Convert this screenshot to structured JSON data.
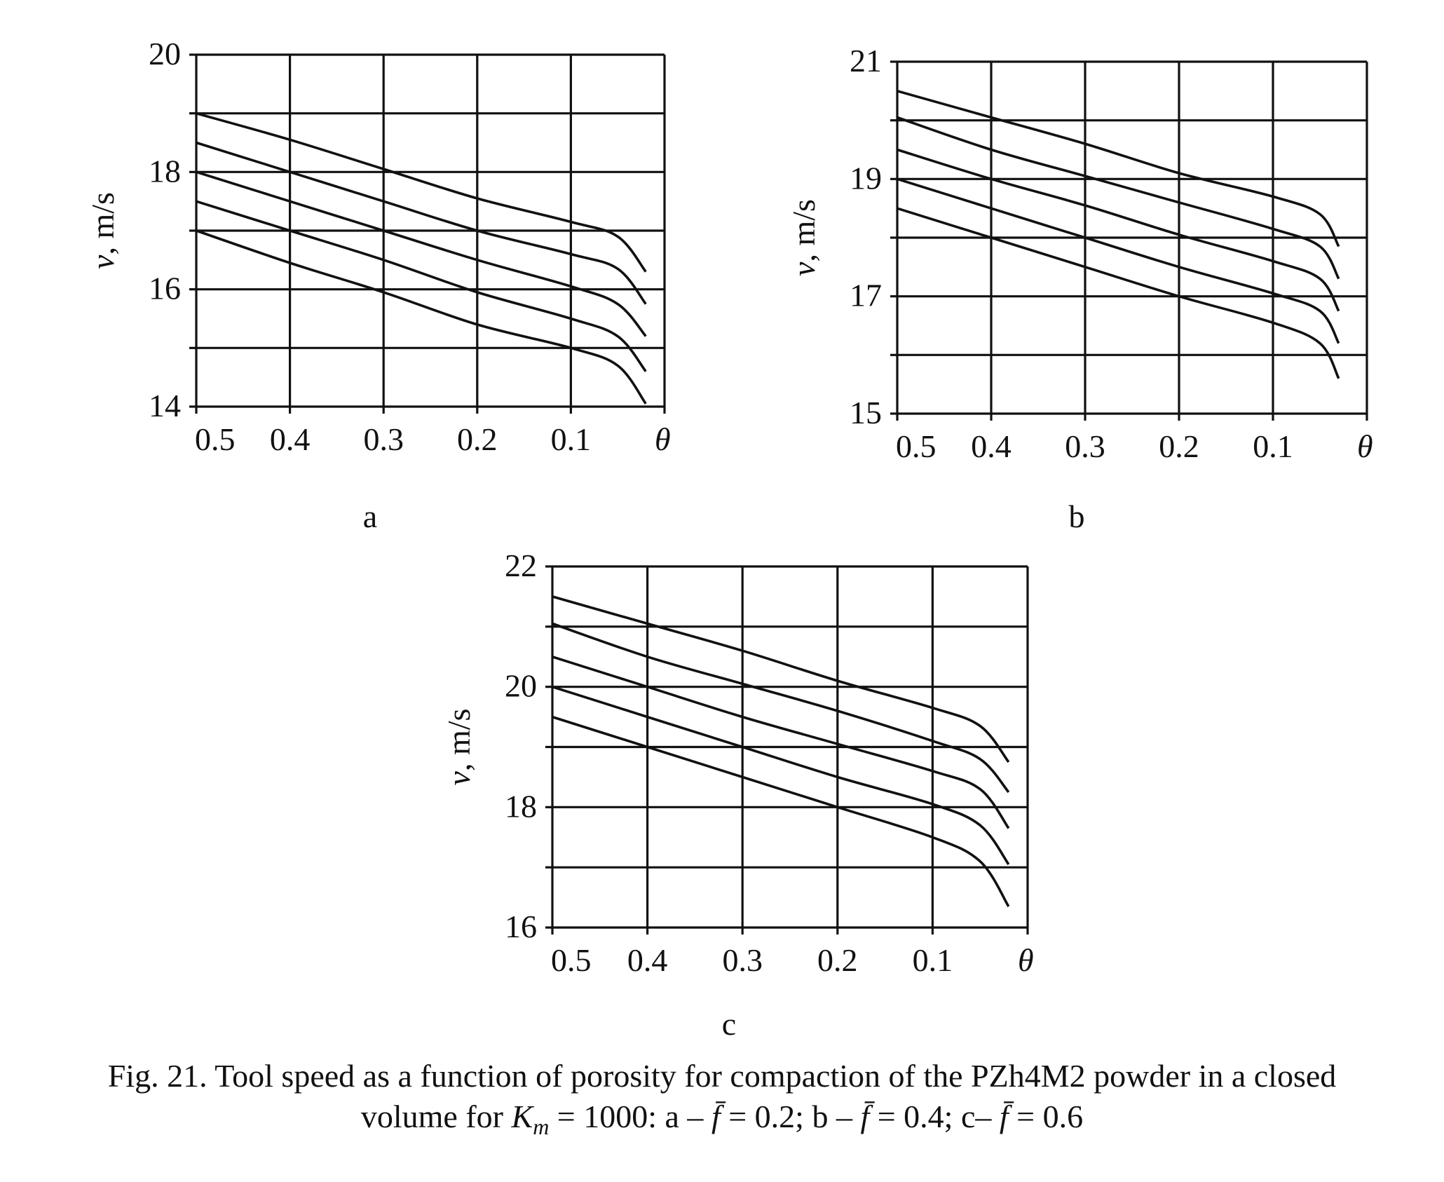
{
  "chart_data": [
    {
      "type": "line",
      "panel_label": "a",
      "ylabel_symbol": "v",
      "ylabel_unit": ", m/s",
      "xlabel": "θ",
      "x_ticks": [
        "0.5",
        "0.4",
        "0.3",
        "0.2",
        "0.1"
      ],
      "y_ticks": [
        "14",
        "16",
        "18",
        "20"
      ],
      "xlim": [
        0.5,
        0.0
      ],
      "ylim": [
        14,
        20
      ],
      "grid": true,
      "series": [
        {
          "x": [
            0.5,
            0.4,
            0.3,
            0.2,
            0.1,
            0.05,
            0.02
          ],
          "y": [
            19.0,
            18.55,
            18.05,
            17.55,
            17.15,
            16.9,
            16.3
          ]
        },
        {
          "x": [
            0.5,
            0.4,
            0.3,
            0.2,
            0.1,
            0.05,
            0.02
          ],
          "y": [
            18.5,
            18.0,
            17.5,
            17.0,
            16.6,
            16.35,
            15.75
          ]
        },
        {
          "x": [
            0.5,
            0.4,
            0.3,
            0.2,
            0.1,
            0.05,
            0.02
          ],
          "y": [
            18.0,
            17.5,
            17.0,
            16.5,
            16.05,
            15.75,
            15.2
          ]
        },
        {
          "x": [
            0.5,
            0.4,
            0.3,
            0.2,
            0.1,
            0.05,
            0.02
          ],
          "y": [
            17.5,
            17.0,
            16.5,
            15.95,
            15.5,
            15.2,
            14.6
          ]
        },
        {
          "x": [
            0.5,
            0.4,
            0.3,
            0.2,
            0.1,
            0.05,
            0.02
          ],
          "y": [
            17.0,
            16.45,
            15.95,
            15.4,
            15.0,
            14.7,
            14.05
          ]
        }
      ]
    },
    {
      "type": "line",
      "panel_label": "b",
      "ylabel_symbol": "v",
      "ylabel_unit": ", m/s",
      "xlabel": "θ",
      "x_ticks": [
        "0.5",
        "0.4",
        "0.3",
        "0.2",
        "0.1"
      ],
      "y_ticks": [
        "15",
        "17",
        "19",
        "21"
      ],
      "xlim": [
        0.5,
        0.0
      ],
      "ylim": [
        15,
        21
      ],
      "grid": true,
      "series": [
        {
          "x": [
            0.5,
            0.4,
            0.3,
            0.2,
            0.1,
            0.05,
            0.03
          ],
          "y": [
            20.5,
            20.05,
            19.6,
            19.1,
            18.7,
            18.4,
            17.85
          ]
        },
        {
          "x": [
            0.5,
            0.4,
            0.3,
            0.2,
            0.1,
            0.05,
            0.03
          ],
          "y": [
            20.05,
            19.5,
            19.05,
            18.6,
            18.15,
            17.85,
            17.3
          ]
        },
        {
          "x": [
            0.5,
            0.4,
            0.3,
            0.2,
            0.1,
            0.05,
            0.03
          ],
          "y": [
            19.5,
            19.0,
            18.55,
            18.05,
            17.6,
            17.3,
            16.75
          ]
        },
        {
          "x": [
            0.5,
            0.4,
            0.3,
            0.2,
            0.1,
            0.05,
            0.03
          ],
          "y": [
            19.0,
            18.5,
            18.0,
            17.5,
            17.05,
            16.75,
            16.2
          ]
        },
        {
          "x": [
            0.5,
            0.4,
            0.3,
            0.2,
            0.1,
            0.05,
            0.03
          ],
          "y": [
            18.5,
            18.0,
            17.5,
            17.0,
            16.55,
            16.2,
            15.6
          ]
        }
      ]
    },
    {
      "type": "line",
      "panel_label": "c",
      "ylabel_symbol": "v",
      "ylabel_unit": ", m/s",
      "xlabel": "θ",
      "x_ticks": [
        "0.5",
        "0.4",
        "0.3",
        "0.2",
        "0.1"
      ],
      "y_ticks": [
        "16",
        "18",
        "20",
        "22"
      ],
      "xlim": [
        0.5,
        0.0
      ],
      "ylim": [
        16,
        22
      ],
      "grid": true,
      "series": [
        {
          "x": [
            0.5,
            0.4,
            0.3,
            0.2,
            0.1,
            0.05,
            0.02
          ],
          "y": [
            21.5,
            21.05,
            20.6,
            20.1,
            19.65,
            19.35,
            18.75
          ]
        },
        {
          "x": [
            0.5,
            0.4,
            0.3,
            0.2,
            0.1,
            0.05,
            0.02
          ],
          "y": [
            21.05,
            20.5,
            20.05,
            19.6,
            19.1,
            18.8,
            18.25
          ]
        },
        {
          "x": [
            0.5,
            0.4,
            0.3,
            0.2,
            0.1,
            0.05,
            0.02
          ],
          "y": [
            20.5,
            20.0,
            19.5,
            19.05,
            18.6,
            18.3,
            17.65
          ]
        },
        {
          "x": [
            0.5,
            0.4,
            0.3,
            0.2,
            0.1,
            0.05,
            0.02
          ],
          "y": [
            20.0,
            19.5,
            19.0,
            18.5,
            18.05,
            17.7,
            17.05
          ]
        },
        {
          "x": [
            0.5,
            0.4,
            0.3,
            0.2,
            0.1,
            0.05,
            0.02
          ],
          "y": [
            19.5,
            19.0,
            18.5,
            18.0,
            17.5,
            17.1,
            16.35
          ]
        }
      ]
    }
  ],
  "caption": {
    "line1": "Fig. 21. Tool speed as a function of porosity for compaction of the PZh4M2 powder in a closed",
    "line2_prefix": "volume for ",
    "km_symbol": "K",
    "km_sub": "m",
    "km_value": " = 1000: a – ",
    "f_symbol": "f̄",
    "val_a": " = 0.2; b – ",
    "val_b": " = 0.4; c– ",
    "val_c": " = 0.6"
  }
}
